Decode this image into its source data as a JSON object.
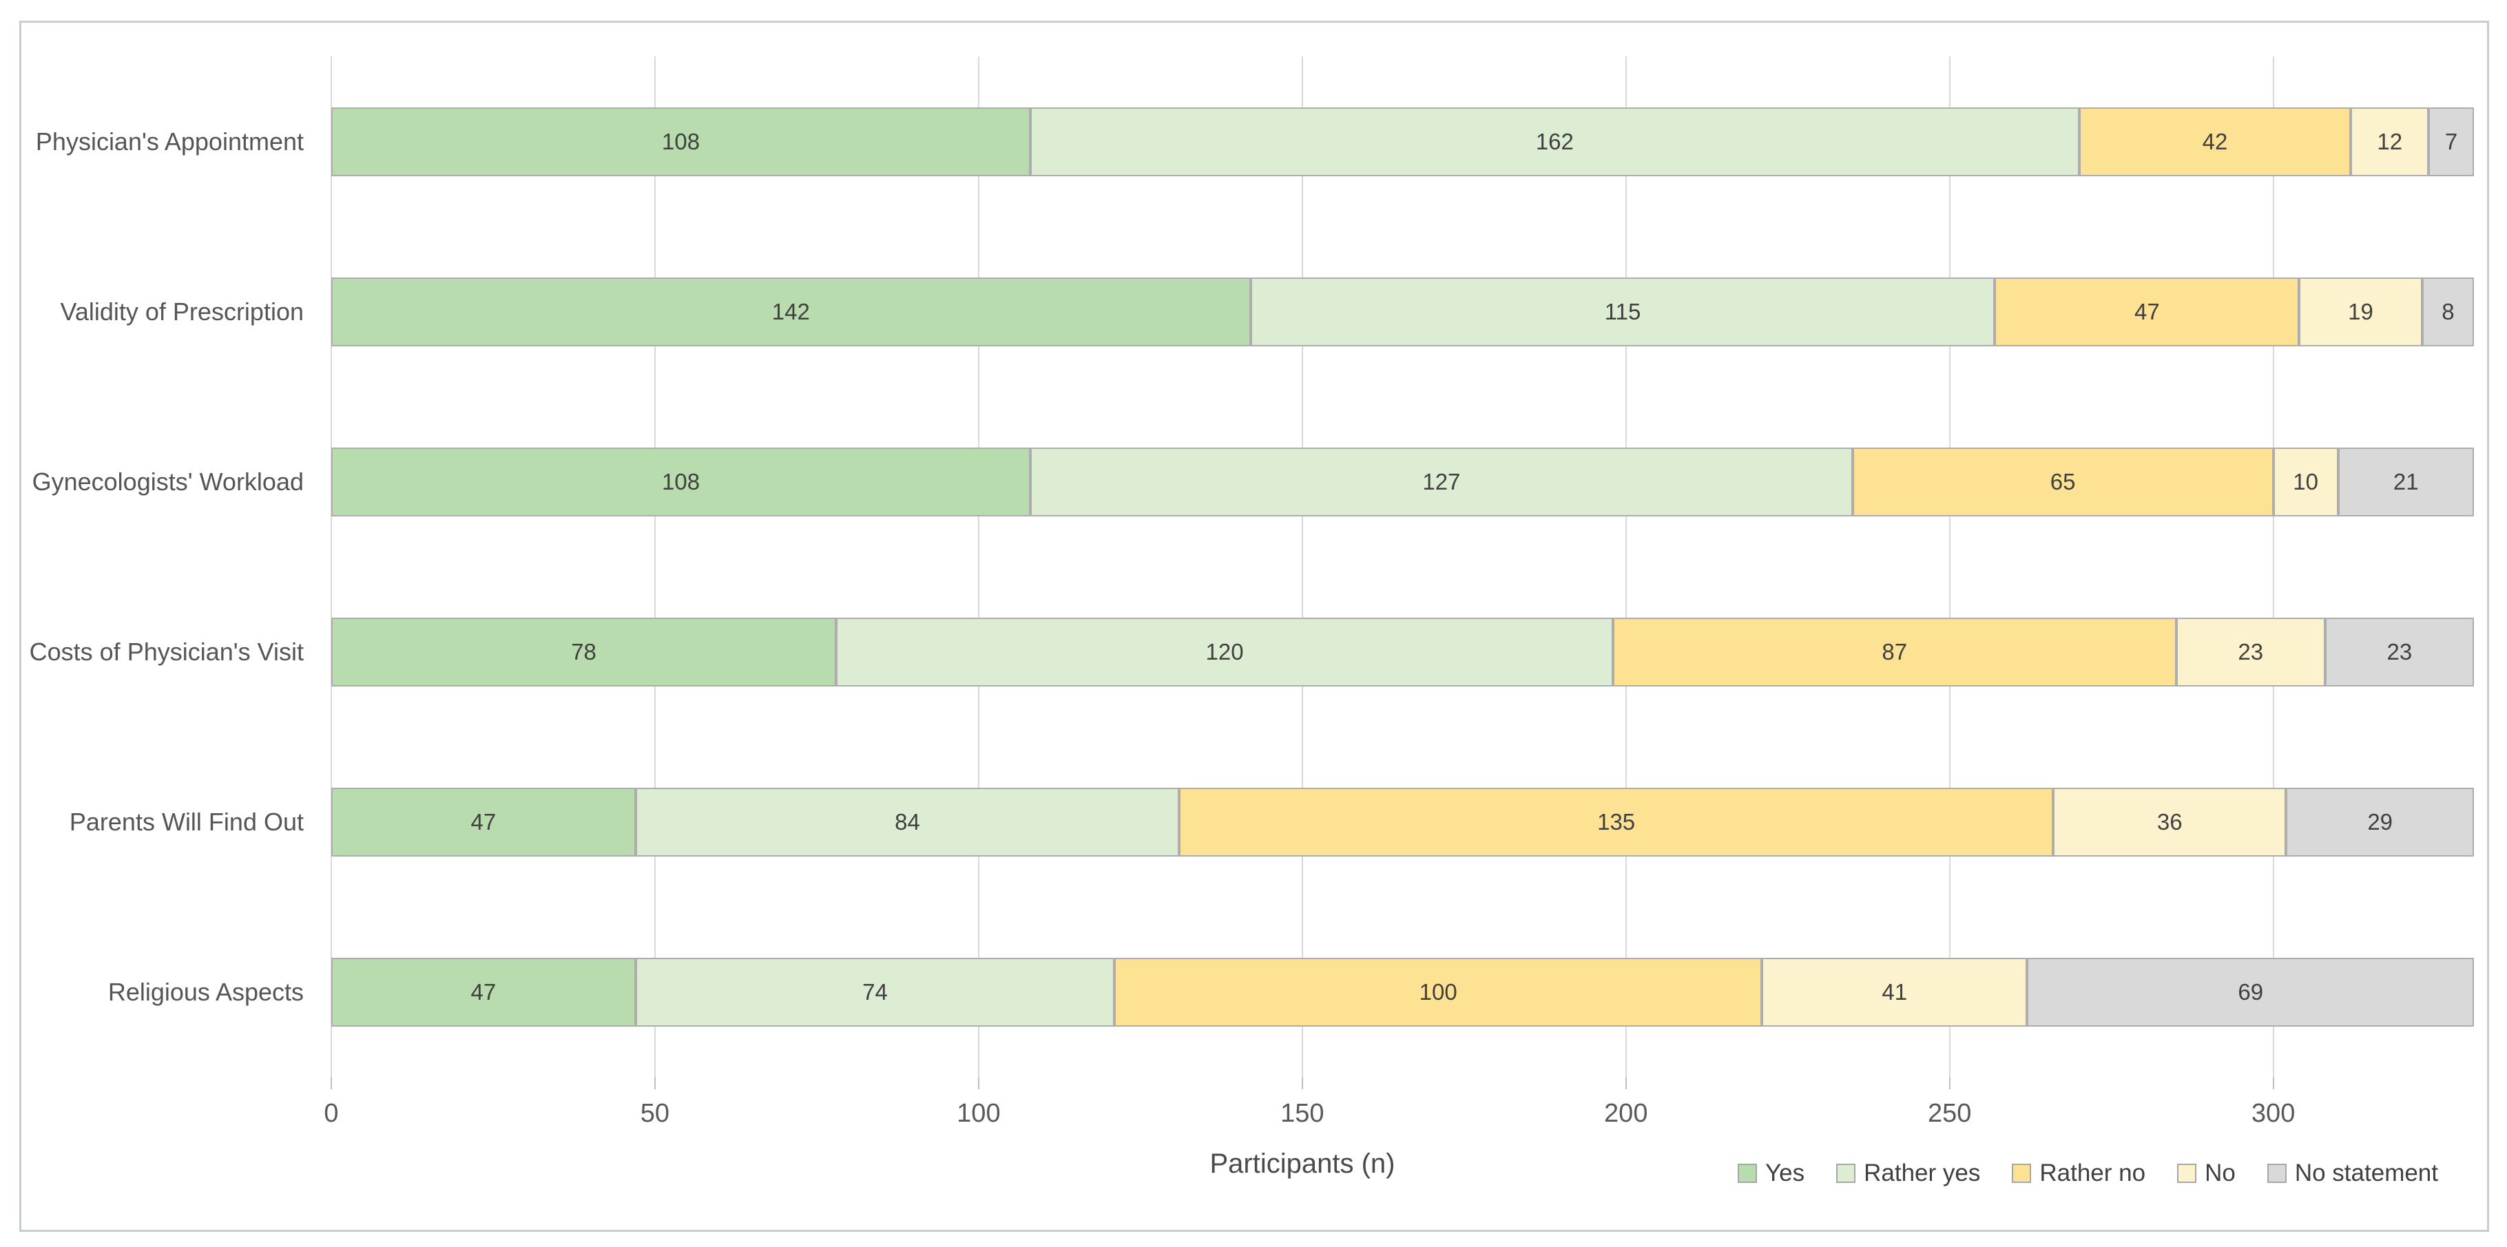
{
  "figure": {
    "border_color": "#c9cdd1",
    "background": "#ffffff"
  },
  "chart_data": {
    "type": "bar",
    "orientation": "horizontal",
    "stacked": true,
    "title": "",
    "xlabel": "Participants (n)",
    "ylabel": "",
    "categories": [
      "Physician's Appointment",
      "Validity of Prescription",
      "Gynecologists' Workload",
      "Costs of Physician's Visit",
      "Parents Will Find Out",
      "Religious Aspects"
    ],
    "series": [
      {
        "name": "Yes",
        "color": "#b8dcae",
        "values": [
          108,
          142,
          108,
          78,
          47,
          47
        ]
      },
      {
        "name": "Rather yes",
        "color": "#ddedd4",
        "values": [
          162,
          115,
          127,
          120,
          84,
          74
        ]
      },
      {
        "name": "Rather no",
        "color": "#fde294",
        "values": [
          42,
          47,
          65,
          87,
          135,
          100
        ]
      },
      {
        "name": "No",
        "color": "#fcf2cd",
        "values": [
          12,
          19,
          10,
          23,
          36,
          41
        ]
      },
      {
        "name": "No statement",
        "color": "#d9d9d9",
        "values": [
          7,
          8,
          21,
          23,
          29,
          69
        ]
      }
    ],
    "x_ticks": [
      0,
      50,
      100,
      150,
      200,
      250,
      300
    ],
    "axis_range": [
      0,
      331
    ],
    "grid": true,
    "gridline_color": "#d9d9d9",
    "segment_border_color": "#adadad",
    "legend_position": "bottom-right",
    "legend": [
      "Yes",
      "Rather yes",
      "Rather no",
      "No",
      "No statement"
    ]
  }
}
